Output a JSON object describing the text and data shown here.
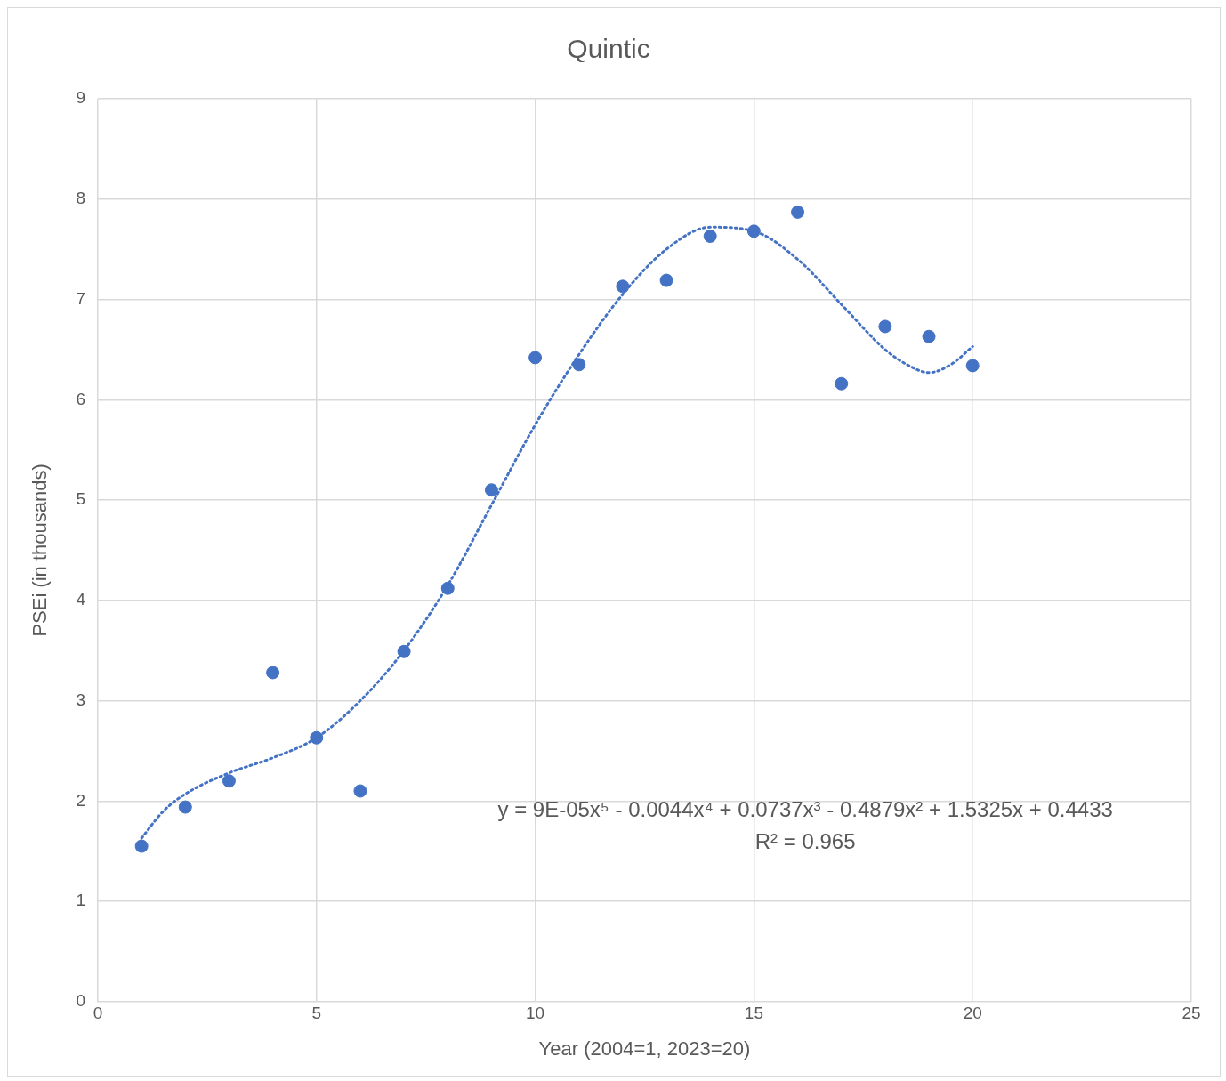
{
  "chart_data": {
    "type": "scatter",
    "title": "Quintic",
    "xlabel": "Year (2004=1, 2023=20)",
    "ylabel": "PSEi (in thousands)",
    "series": [
      {
        "type": "scatter",
        "color": "#4472c4",
        "marker": "circle",
        "x": [
          1,
          2,
          3,
          4,
          5,
          6,
          7,
          8,
          9,
          10,
          11,
          12,
          13,
          14,
          15,
          16,
          17,
          18,
          19,
          20
        ],
        "values": [
          1.55,
          1.94,
          2.2,
          3.28,
          2.63,
          2.1,
          3.49,
          4.12,
          5.1,
          6.42,
          6.35,
          7.13,
          7.19,
          7.63,
          7.68,
          7.87,
          6.16,
          6.73,
          6.63,
          6.34
        ]
      },
      {
        "type": "line",
        "color": "#4472c4",
        "marker": "none",
        "line_style": "dotted",
        "x": [
          1,
          1.5,
          2,
          3,
          4,
          5,
          6,
          7,
          8,
          9,
          10,
          11,
          12,
          13,
          14,
          15,
          16,
          17,
          18,
          18.5,
          19,
          19.5,
          20
        ],
        "values": [
          1.63,
          1.9,
          2.07,
          2.28,
          2.43,
          2.63,
          3.0,
          3.5,
          4.15,
          4.95,
          5.75,
          6.45,
          7.05,
          7.5,
          7.72,
          7.68,
          7.4,
          6.95,
          6.5,
          6.35,
          6.27,
          6.35,
          6.53
        ]
      }
    ],
    "xlim": [
      0,
      25
    ],
    "xticks": [
      0,
      5,
      10,
      15,
      20,
      25
    ],
    "ylim": [
      0,
      9
    ],
    "yticks": [
      0,
      1,
      2,
      3,
      4,
      5,
      6,
      7,
      8,
      9
    ],
    "grid": true,
    "legend": false,
    "annotations": [
      "y = 9E-05x⁵ - 0.0044x⁴ + 0.0737x³ - 0.4879x² + 1.5325x + 0.4433",
      "R² = 0.965"
    ]
  }
}
